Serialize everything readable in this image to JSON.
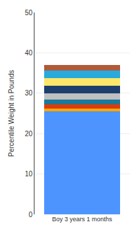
{
  "chart_data": {
    "type": "bar",
    "stacked": true,
    "grid": true,
    "categories": [
      "Boy 3 years 1 months"
    ],
    "ylabel": "Percentile Weight in Pounds",
    "ylim": [
      0,
      50
    ],
    "yticks": [
      0,
      10,
      20,
      30,
      40,
      50
    ],
    "series": [
      {
        "color": "#4d94ff",
        "values": [
          25.5
        ]
      },
      {
        "color": "#f5a800",
        "values": [
          0.7
        ]
      },
      {
        "color": "#e03a0a",
        "values": [
          1.0
        ]
      },
      {
        "color": "#1a7a99",
        "values": [
          1.3
        ]
      },
      {
        "color": "#c0c0c0",
        "values": [
          1.5
        ]
      },
      {
        "color": "#1c3f6e",
        "values": [
          1.8
        ]
      },
      {
        "color": "#fde76a",
        "values": [
          2.0
        ]
      },
      {
        "color": "#29aadd",
        "values": [
          1.8
        ]
      },
      {
        "color": "#b05a38",
        "values": [
          1.4
        ]
      }
    ]
  }
}
